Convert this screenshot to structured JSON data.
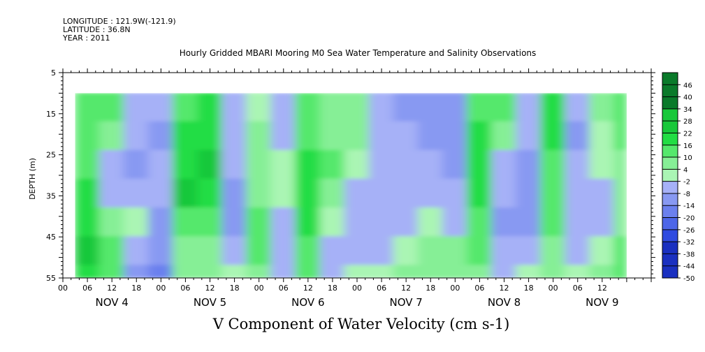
{
  "header": {
    "longitude": "LONGITUDE : 121.9W(-121.9)",
    "latitude": "LATITUDE : 36.8N",
    "year": "YEAR : 2011"
  },
  "chart_data": {
    "type": "heatmap",
    "title": "Hourly Gridded MBARI Mooring M0 Sea Water Temperature and Salinity Observations",
    "variable_title": "V Component of Water Velocity (cm s-1)",
    "ylabel": "DEPTH (m)",
    "ylim": [
      5,
      55
    ],
    "y_inverted": true,
    "yticks": [
      5,
      15,
      25,
      35,
      45,
      55
    ],
    "hour_ticks": [
      "00",
      "06",
      "12",
      "18",
      "00",
      "06",
      "12",
      "18",
      "00",
      "06",
      "12",
      "18",
      "00",
      "06",
      "12",
      "18",
      "00",
      "06",
      "12",
      "18",
      "00",
      "06",
      "12"
    ],
    "day_labels": [
      "NOV  4",
      "NOV  5",
      "NOV  6",
      "NOV  7",
      "NOV  8",
      "NOV  9"
    ],
    "colorbar_levels": [
      "46",
      "40",
      "34",
      "28",
      "22",
      "16",
      "10",
      "4",
      "-2",
      "-8",
      "-14",
      "-20",
      "-26",
      "-32",
      "-38",
      "-44",
      "-50"
    ],
    "colorbar_range": [
      -50,
      52
    ],
    "colors": {
      "strong_green": "#22dd44",
      "light_green": "#aaf5b4",
      "light_blue": "#a6b1f7",
      "blue": "#8899f2"
    },
    "data_depth_range_m": [
      10,
      55
    ],
    "data_time_range_hours": [
      3,
      138
    ],
    "time_column_hours": [
      3,
      9,
      15,
      21,
      27,
      33,
      39,
      45,
      51,
      57,
      63,
      69,
      75,
      81,
      87,
      93,
      99,
      105,
      111,
      117,
      123,
      129,
      135
    ],
    "depth_rows_m": [
      10,
      17,
      24,
      31,
      38,
      45,
      52
    ],
    "values_cm_s": [
      [
        10,
        12,
        15,
        18,
        20,
        22,
        20
      ],
      [
        12,
        8,
        -4,
        -6,
        6,
        14,
        12
      ],
      [
        -6,
        -8,
        -10,
        -4,
        2,
        -8,
        -12
      ],
      [
        -8,
        -10,
        -6,
        -8,
        -12,
        -14,
        -16
      ],
      [
        14,
        18,
        20,
        22,
        14,
        8,
        6
      ],
      [
        16,
        20,
        22,
        18,
        10,
        6,
        8
      ],
      [
        -4,
        -8,
        -6,
        -10,
        -12,
        -6,
        -2
      ],
      [
        2,
        4,
        6,
        8,
        10,
        10,
        8
      ],
      [
        -6,
        -4,
        -2,
        -2,
        -4,
        -8,
        -6
      ],
      [
        12,
        14,
        16,
        18,
        16,
        12,
        10
      ],
      [
        8,
        6,
        10,
        8,
        -2,
        -4,
        -6
      ],
      [
        4,
        4,
        2,
        -4,
        -6,
        -6,
        2
      ],
      [
        -8,
        -6,
        -4,
        -6,
        -8,
        -8,
        2
      ],
      [
        -10,
        -8,
        -8,
        -6,
        -6,
        2,
        4
      ],
      [
        -12,
        -10,
        -8,
        -6,
        2,
        4,
        4
      ],
      [
        -14,
        -12,
        -10,
        -8,
        -4,
        4,
        6
      ],
      [
        14,
        16,
        18,
        20,
        14,
        10,
        8
      ],
      [
        10,
        8,
        -4,
        -8,
        -10,
        -6,
        -8
      ],
      [
        -6,
        -8,
        -10,
        -12,
        -10,
        -4,
        2
      ],
      [
        16,
        18,
        14,
        12,
        10,
        8,
        6
      ],
      [
        -8,
        -10,
        -6,
        -6,
        -8,
        -6,
        2
      ],
      [
        4,
        2,
        -2,
        -4,
        -6,
        2,
        8
      ],
      [
        12,
        10,
        8,
        6,
        8,
        10,
        12
      ]
    ]
  }
}
